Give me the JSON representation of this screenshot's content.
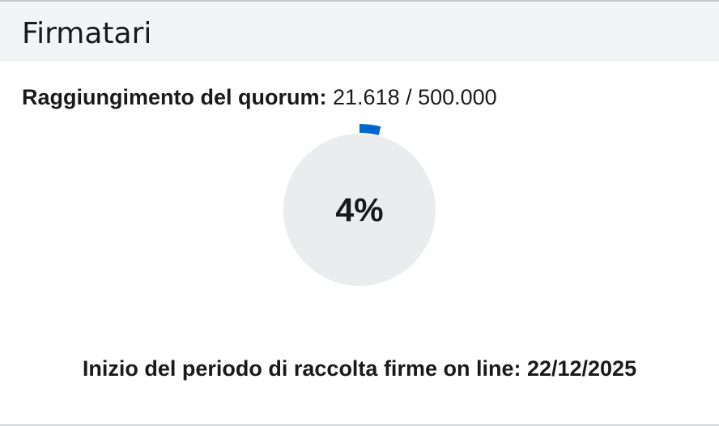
{
  "header": {
    "title": "Firmatari"
  },
  "quorum": {
    "label": "Raggiungimento del quorum:",
    "value": "21.618 / 500.000"
  },
  "progress": {
    "percent_label": "4%",
    "fraction": 0.04,
    "fill_color": "#0066cc",
    "track_color": "#ebecee"
  },
  "start": {
    "text": "Inizio del periodo di raccolta firme on line: 22/12/2025"
  }
}
